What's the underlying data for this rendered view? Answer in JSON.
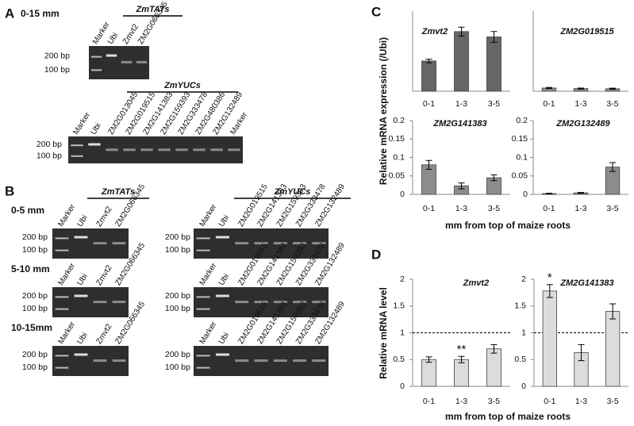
{
  "panels": {
    "A": {
      "label": "A",
      "title": "0-15 mm",
      "gels": [
        {
          "group": "ZmTATs",
          "lanes": [
            "Marker",
            "Ubi",
            "Zmvt2",
            "ZM2G066345"
          ],
          "markers": [
            "200 bp",
            "100 bp"
          ]
        },
        {
          "group": "ZmYUCs",
          "lanes": [
            "Marker",
            "Ubi",
            "ZM2G013045",
            "ZM2G019515",
            "ZM2G141383",
            "ZM2G159393",
            "ZM2G333478",
            "ZM2G480386",
            "ZM2G132489",
            "Marker"
          ],
          "markers": [
            "200 bp",
            "100 bp"
          ]
        }
      ]
    },
    "B": {
      "label": "B",
      "groups": [
        "ZmTATs",
        "ZmYUCs"
      ],
      "rows": [
        {
          "title": "0-5 mm",
          "gels": [
            {
              "lanes": [
                "Marker",
                "Ubi",
                "Zmvt2",
                "ZM2G066345"
              ],
              "markers": [
                "200 bp",
                "100 bp"
              ]
            },
            {
              "lanes": [
                "Marker",
                "Ubi",
                "ZM2G019515",
                "ZM2G141383",
                "ZM2G159393",
                "ZM2G333478",
                "ZM2G132489"
              ],
              "markers": [
                "200 bp",
                "100 bp"
              ]
            }
          ]
        },
        {
          "title": "5-10 mm",
          "gels": [
            {
              "lanes": [
                "Marker",
                "Ubi",
                "Zmvt2",
                "ZM2G066345"
              ],
              "markers": [
                "200 bp",
                "100 bp"
              ]
            },
            {
              "lanes": [
                "Marker",
                "Ubi",
                "ZM2G019515",
                "ZM2G141383",
                "ZM2G159393",
                "ZM2G333478",
                "ZM2G132489"
              ],
              "markers": [
                "200 bp",
                "100 bp"
              ]
            }
          ]
        },
        {
          "title": "10-15mm",
          "gels": [
            {
              "lanes": [
                "Marker",
                "Ubi",
                "Zmvt2",
                "ZM2G066345"
              ],
              "markers": [
                "200 bp",
                "100 bp"
              ]
            },
            {
              "lanes": [
                "Marker",
                "Ubi",
                "ZM2G019515",
                "ZM2G141383",
                "ZM2G159393",
                "ZM2G333478",
                "ZM2G132489"
              ],
              "markers": [
                "200 bp",
                "100 bp"
              ]
            }
          ]
        }
      ]
    },
    "C": {
      "label": "C",
      "y_label": "Relative mRNA expression  (/Ubi)",
      "x_label": "mm from top of maize roots"
    },
    "D": {
      "label": "D",
      "y_label": "Relative mRNA level",
      "x_label": "mm from top of maize roots"
    }
  },
  "chart_data": [
    {
      "type": "bar",
      "title": "Zmvt2",
      "categories": [
        "0-1",
        "1-3",
        "3-5"
      ],
      "values": [
        1.7,
        3.35,
        3.05
      ],
      "errors": [
        0.1,
        0.25,
        0.3
      ],
      "color": "#666666",
      "ylim": [
        0,
        4.5
      ]
    },
    {
      "type": "bar",
      "title": "ZM2G019515",
      "categories": [
        "0-1",
        "1-3",
        "3-5"
      ],
      "values": [
        0.18,
        0.15,
        0.14
      ],
      "errors": [
        0.03,
        0.03,
        0.03
      ],
      "color": "#8c8c8c",
      "ylim": [
        0,
        4.5
      ]
    },
    {
      "type": "bar",
      "title": "ZM2G141383",
      "categories": [
        "0-1",
        "1-3",
        "3-5"
      ],
      "values": [
        0.08,
        0.023,
        0.045
      ],
      "errors": [
        0.012,
        0.008,
        0.008
      ],
      "color": "#8c8c8c",
      "ylim": [
        0,
        0.2
      ],
      "yticks": [
        0,
        0.05,
        0.1,
        0.15,
        0.2
      ]
    },
    {
      "type": "bar",
      "title": "ZM2G132489",
      "categories": [
        "0-1",
        "1-3",
        "3-5"
      ],
      "values": [
        0.002,
        0.004,
        0.074
      ],
      "errors": [
        0.001,
        0.001,
        0.012
      ],
      "color": "#8c8c8c",
      "ylim": [
        0,
        0.2
      ],
      "yticks": [
        0,
        0.05,
        0.1,
        0.15,
        0.2
      ]
    },
    {
      "type": "bar",
      "title": "Zmvt2",
      "categories": [
        "0-1",
        "1-3",
        "3-5"
      ],
      "values": [
        0.5,
        0.5,
        0.7
      ],
      "errors": [
        0.05,
        0.06,
        0.08
      ],
      "value_annotations": [
        null,
        "**",
        null
      ],
      "color": "#dcdcdc",
      "ylim": [
        0,
        2
      ],
      "yticks": [
        0,
        0.5,
        1,
        1.5,
        2
      ],
      "reference_line": 1
    },
    {
      "type": "bar",
      "title": "ZM2G141383",
      "categories": [
        "0-1",
        "1-3",
        "3-5"
      ],
      "values": [
        1.78,
        0.63,
        1.4
      ],
      "errors": [
        0.12,
        0.15,
        0.14
      ],
      "value_annotations": [
        "*",
        null,
        null
      ],
      "color": "#dcdcdc",
      "ylim": [
        0,
        2
      ],
      "yticks": [
        0,
        0.5,
        1,
        1.5,
        2
      ],
      "reference_line": 1
    }
  ]
}
